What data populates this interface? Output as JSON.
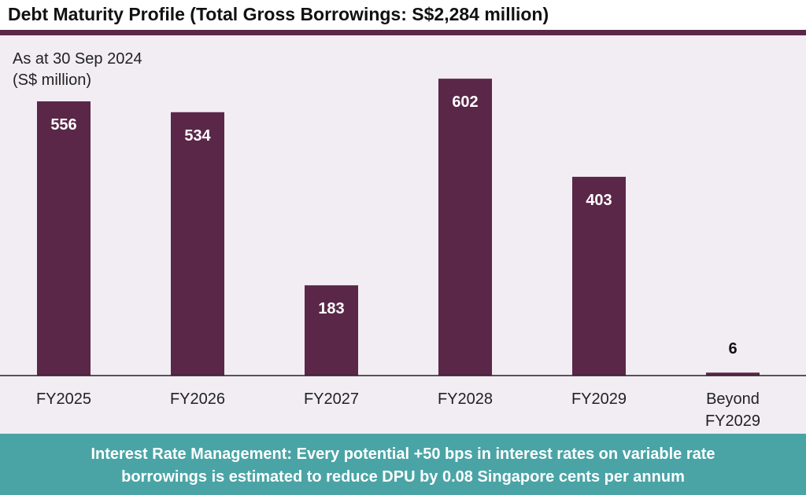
{
  "header": {
    "title": "Debt Maturity Profile (Total Gross Borrowings: S$2,284 million)"
  },
  "colors": {
    "bar": "#5a2748",
    "title_rule": "#5a2748",
    "panel_background": "#f1edf3",
    "footer_background": "#4aa4a6",
    "bar_label_inside": "#ffffff",
    "bar_label_outside": "#111111"
  },
  "chart_data": {
    "type": "bar",
    "subtitle_lines": [
      "As at 30 Sep 2024",
      "(S$ million)"
    ],
    "categories": [
      [
        "FY2025"
      ],
      [
        "FY2026"
      ],
      [
        "FY2027"
      ],
      [
        "FY2028"
      ],
      [
        "FY2029"
      ],
      [
        "Beyond",
        "FY2029"
      ]
    ],
    "values": [
      556,
      534,
      183,
      602,
      403,
      6
    ],
    "data_labels": [
      "556",
      "534",
      "183",
      "602",
      "403",
      "6"
    ],
    "xlabel": "",
    "ylabel": "",
    "ylim": [
      0,
      650
    ],
    "grid": false,
    "legend": "none"
  },
  "footer": {
    "lines": [
      "Interest Rate Management: Every potential +50 bps in interest rates on variable rate",
      "borrowings is estimated to reduce DPU by 0.08 Singapore cents per annum"
    ]
  }
}
